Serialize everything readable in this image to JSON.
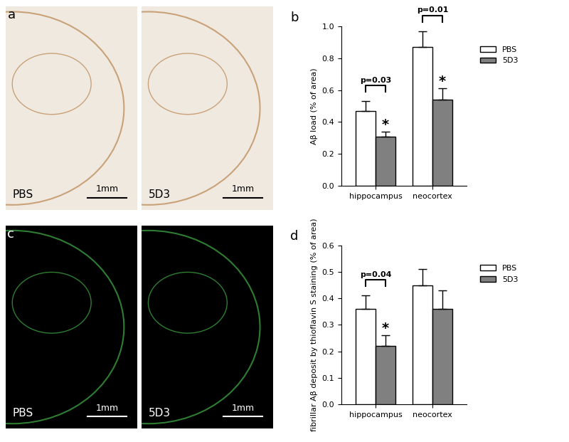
{
  "image_panels": [
    {
      "panel_label": "a",
      "color": "#efe9df",
      "images": [
        {
          "label": "PBS",
          "scale_bar": "1mm"
        },
        {
          "label": "5D3",
          "scale_bar": "1mm"
        }
      ]
    },
    {
      "panel_label": "c",
      "color": "#000000",
      "images": [
        {
          "label": "PBS",
          "scale_bar": "1mm"
        },
        {
          "label": "5D3",
          "scale_bar": "1mm"
        }
      ]
    }
  ],
  "chart_data": [
    {
      "type": "bar",
      "panel_label": "b",
      "y_label": "Aβ load (% of area)",
      "categories": [
        "hippocampus",
        "neocortex"
      ],
      "series": [
        {
          "name": "PBS",
          "color": "#ffffff",
          "values": [
            0.47,
            0.87
          ],
          "errors": [
            0.06,
            0.1
          ]
        },
        {
          "name": "5D3",
          "color": "#808080",
          "values": [
            0.31,
            0.54
          ],
          "errors": [
            0.03,
            0.07
          ]
        }
      ],
      "ylim": [
        0.0,
        1.0
      ],
      "yticks": [
        {
          "value": 0.0,
          "label": "0.0"
        },
        0.2,
        0.4,
        0.6,
        0.8,
        {
          "value": 1.0,
          "label": "1.0"
        }
      ],
      "legend": "right",
      "annotations": [
        {
          "text": "p=0.03",
          "category": "hippocampus",
          "between": [
            "PBS",
            "5D3"
          ]
        },
        {
          "text": "p=0.01",
          "category": "neocortex",
          "between": [
            "PBS",
            "5D3"
          ]
        },
        {
          "text": "*",
          "category": "hippocampus",
          "series": "5D3"
        },
        {
          "text": "*",
          "category": "neocortex",
          "series": "5D3"
        }
      ]
    },
    {
      "type": "bar",
      "panel_label": "d",
      "y_label": "fibrillar Aβ deposit by thioflavin S staining (% of area)",
      "categories": [
        "hippocampus",
        "neocortex"
      ],
      "series": [
        {
          "name": "PBS",
          "color": "#ffffff",
          "values": [
            0.36,
            0.45
          ],
          "errors": [
            0.05,
            0.06
          ]
        },
        {
          "name": "5D3",
          "color": "#808080",
          "values": [
            0.22,
            0.36
          ],
          "errors": [
            0.04,
            0.07
          ]
        }
      ],
      "ylim": [
        0.0,
        0.6
      ],
      "yticks": [
        {
          "value": 0.0,
          "label": "0.0"
        },
        0.1,
        0.2,
        0.3,
        0.4,
        0.5,
        0.6
      ],
      "legend": "right",
      "annotations": [
        {
          "text": "p=0.04",
          "category": "hippocampus",
          "between": [
            "PBS",
            "5D3"
          ]
        },
        {
          "text": "*",
          "category": "hippocampus",
          "series": "5D3"
        }
      ]
    }
  ]
}
